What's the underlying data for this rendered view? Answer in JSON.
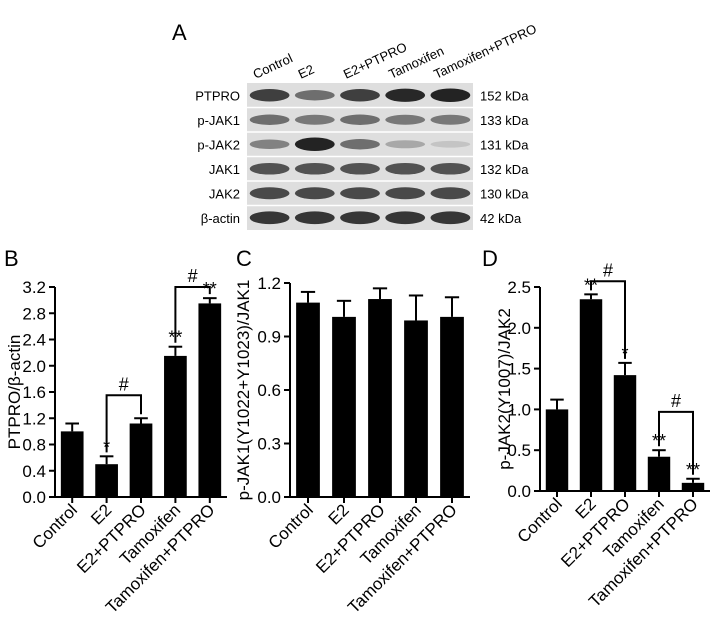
{
  "panels": {
    "a": "A",
    "b": "B",
    "c": "C",
    "d": "D"
  },
  "blot": {
    "lanes": [
      "Control",
      "E2",
      "E2+PTPRO",
      "Tamoxifen",
      "Tamoxifen+PTPRO"
    ],
    "rows": [
      {
        "label": "PTPRO",
        "size": "152 kDa",
        "intensity": [
          0.8,
          0.55,
          0.8,
          0.92,
          0.95
        ]
      },
      {
        "label": "p-JAK1",
        "size": "133 kDa",
        "intensity": [
          0.55,
          0.5,
          0.55,
          0.5,
          0.5
        ]
      },
      {
        "label": "p-JAK2",
        "size": "131 kDa",
        "intensity": [
          0.45,
          0.95,
          0.55,
          0.25,
          0.1
        ]
      },
      {
        "label": "JAK1",
        "size": "132 kDa",
        "intensity": [
          0.7,
          0.7,
          0.7,
          0.7,
          0.7
        ]
      },
      {
        "label": "JAK2",
        "size": "130 kDa",
        "intensity": [
          0.75,
          0.75,
          0.75,
          0.75,
          0.75
        ]
      },
      {
        "label": "β-actin",
        "size": "42 kDa",
        "intensity": [
          0.85,
          0.85,
          0.85,
          0.85,
          0.85
        ]
      }
    ]
  },
  "chart_data": [
    {
      "type": "bar",
      "categories": [
        "Control",
        "E2",
        "E2+PTPRO",
        "Tamoxifen",
        "Tamoxifen+PTPRO"
      ],
      "values": [
        1.0,
        0.5,
        1.12,
        2.15,
        2.95
      ],
      "errors": [
        0.12,
        0.12,
        0.08,
        0.14,
        0.08
      ],
      "annotations": [
        "",
        "*",
        "",
        "**",
        "**"
      ],
      "brackets": [
        {
          "from": 1,
          "to": 2,
          "label": "#",
          "y": 1.55
        },
        {
          "from": 3,
          "to": 4,
          "label": "#",
          "y": 3.2
        }
      ],
      "ylabel": "PTPRO/β-actin",
      "ylim": [
        0,
        3.2
      ],
      "yticks": [
        "0.0",
        "0.4",
        "0.8",
        "1.2",
        "1.6",
        "2.0",
        "2.4",
        "2.8",
        "3.2"
      ]
    },
    {
      "type": "bar",
      "categories": [
        "Control",
        "E2",
        "E2+PTPRO",
        "Tamoxifen",
        "Tamoxifen+PTPRO"
      ],
      "values": [
        1.09,
        1.01,
        1.11,
        0.99,
        1.01
      ],
      "errors": [
        0.06,
        0.09,
        0.06,
        0.14,
        0.11
      ],
      "annotations": [
        "",
        "",
        "",
        "",
        ""
      ],
      "brackets": [],
      "ylabel": "p-JAK1(Y1022+Y1023)/JAK1",
      "ylim": [
        0,
        1.2
      ],
      "yticks": [
        "0.0",
        "0.3",
        "0.6",
        "0.9",
        "1.2"
      ]
    },
    {
      "type": "bar",
      "categories": [
        "Control",
        "E2",
        "E2+PTPRO",
        "Tamoxifen",
        "Tamoxifen+PTPRO"
      ],
      "values": [
        1.0,
        2.35,
        1.42,
        0.42,
        0.1
      ],
      "errors": [
        0.12,
        0.06,
        0.15,
        0.08,
        0.05
      ],
      "annotations": [
        "",
        "**",
        "*",
        "**",
        "**"
      ],
      "brackets": [
        {
          "from": 1,
          "to": 2,
          "label": "#",
          "y": 2.57
        },
        {
          "from": 3,
          "to": 4,
          "label": "#",
          "y": 0.97
        }
      ],
      "ylabel": "p-JAK2(Y1007)/JAK2",
      "ylim": [
        0,
        2.5
      ],
      "yticks": [
        "0.0",
        "0.5",
        "1.0",
        "1.5",
        "2.0",
        "2.5"
      ]
    }
  ]
}
